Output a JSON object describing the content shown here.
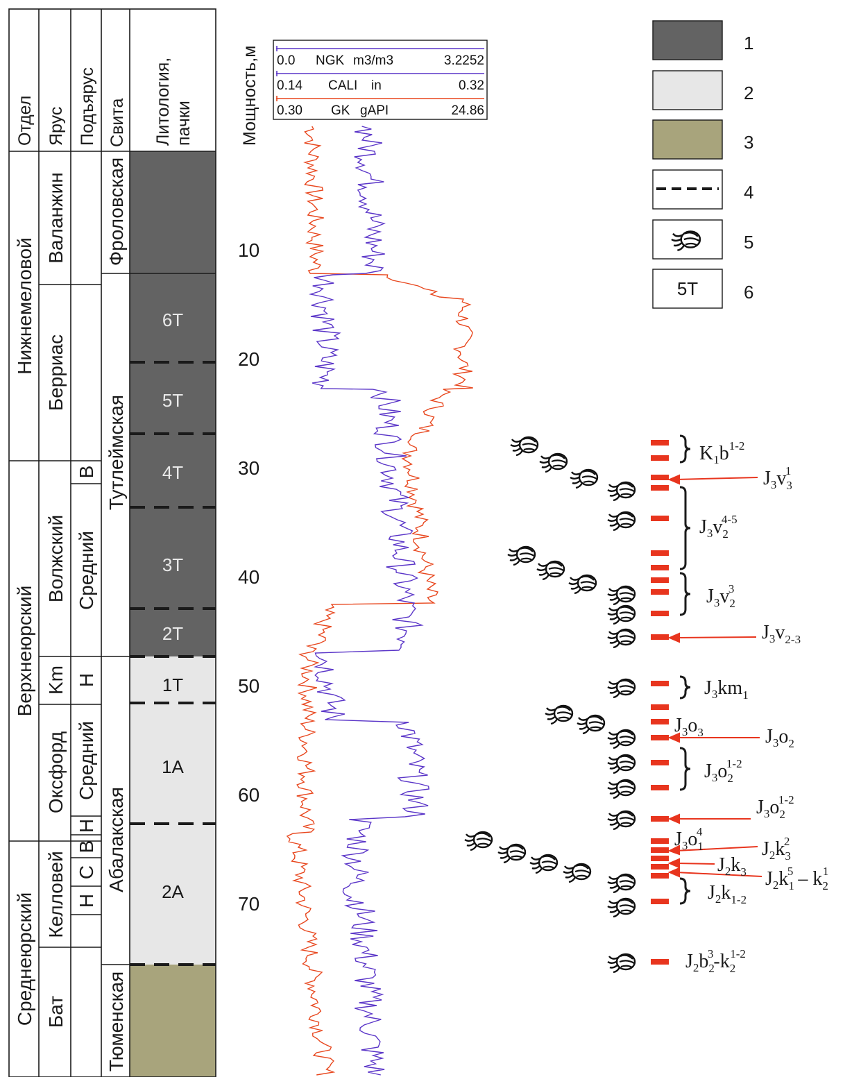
{
  "strat_headers": {
    "otdel": "Отдел",
    "yarus": "Ярус",
    "podyarus": "Подъярус",
    "svita": "Свита",
    "litology": [
      "Литология,",
      "пачки"
    ],
    "thickness": "Мощность,м"
  },
  "otdel_units": [
    "Нижнемеловой",
    "Верхнеюрский",
    "Среднеюрский"
  ],
  "yarus_units": [
    "Валанжин",
    "Берриас",
    "Волжский",
    "Km",
    "Оксфорд",
    "Келловей",
    "Бат"
  ],
  "podyarus_units": [
    "В",
    "Средний",
    "Н",
    "Средний",
    "Н",
    "В",
    "С",
    "Н"
  ],
  "svita_units": [
    "Фроловская",
    "Тутлеймская",
    "Абалакская",
    "Тюменская"
  ],
  "packs": [
    "6Т",
    "5Т",
    "4Т",
    "3Т",
    "2Т",
    "1Т",
    "1А",
    "2А"
  ],
  "depth_ticks": [
    "10",
    "20",
    "30",
    "40",
    "50",
    "60",
    "70"
  ],
  "log_header": [
    {
      "min": "0.0",
      "name": "NGK",
      "unit": "m3/m3",
      "max": "3.2252",
      "color": "#5a35c8"
    },
    {
      "min": "0.14",
      "name": "CALI",
      "unit": "in",
      "max": "0.32",
      "color": "#5a35c8"
    },
    {
      "min": "0.30",
      "name": "GK",
      "unit": "gAPI",
      "max": "24.86",
      "color": "#e8471e"
    }
  ],
  "legend": [
    {
      "num": "1",
      "kind": "fill",
      "color": "#636363"
    },
    {
      "num": "2",
      "kind": "fill",
      "color": "#e7e7e7"
    },
    {
      "num": "3",
      "kind": "fill",
      "color": "#a8a47c"
    },
    {
      "num": "4",
      "kind": "dashed-line"
    },
    {
      "num": "5",
      "kind": "ammonite-icon"
    },
    {
      "num": "6",
      "kind": "text",
      "text": "5Т"
    }
  ],
  "age_labels": [
    {
      "b": "K",
      "s": "1",
      "r": "b",
      "sub": "",
      "sup": "1-2"
    },
    {
      "b": "J",
      "s": "3",
      "r": "v",
      "sub": "3",
      "sup": "1"
    },
    {
      "b": "J",
      "s": "3",
      "r": "v",
      "sub": "2",
      "sup": "4-5"
    },
    {
      "b": "J",
      "s": "3",
      "r": "v",
      "sub": "2",
      "sup": "3"
    },
    {
      "b": "J",
      "s": "3",
      "r": "v",
      "sub": "2-3",
      "sup": ""
    },
    {
      "b": "J",
      "s": "3",
      "r": "km",
      "sub": "1",
      "sup": ""
    },
    {
      "b": "J",
      "s": "3",
      "r": "o",
      "sub": "3",
      "sup": ""
    },
    {
      "b": "J",
      "s": "3",
      "r": "o",
      "sub": "2",
      "sup": ""
    },
    {
      "b": "J",
      "s": "3",
      "r": "o",
      "sub": "2",
      "sup": "1-2"
    },
    {
      "b": "J",
      "s": "3",
      "r": "o",
      "sub": "2",
      "sup": "1-2"
    },
    {
      "b": "J",
      "s": "3",
      "r": "o",
      "sub": "1",
      "sup": "4"
    },
    {
      "b": "J",
      "s": "2",
      "r": "k",
      "sub": "3",
      "sup": "2"
    },
    {
      "b": "J",
      "s": "2",
      "r": "k",
      "sub": "3",
      "sup": ""
    },
    {
      "b": "J",
      "s": "2",
      "r": "k",
      "sub": "1",
      "sup": "5",
      "tail_r": " – k",
      "tail_sub": "2",
      "tail_sup": "1"
    },
    {
      "b": "J",
      "s": "2",
      "r": "k",
      "sub": "1-2",
      "sup": ""
    },
    {
      "b": "J",
      "s": "2",
      "r": "b",
      "sub": "2",
      "sup": "3",
      "tail_r": "-k",
      "tail_sub": "2",
      "tail_sup": "1-2"
    }
  ],
  "colors": {
    "dark": "#636363",
    "light": "#e7e7e7",
    "olive": "#a8a47c",
    "ngk": "#5a35c8",
    "gk": "#e8471e",
    "marker": "#e8351e"
  }
}
